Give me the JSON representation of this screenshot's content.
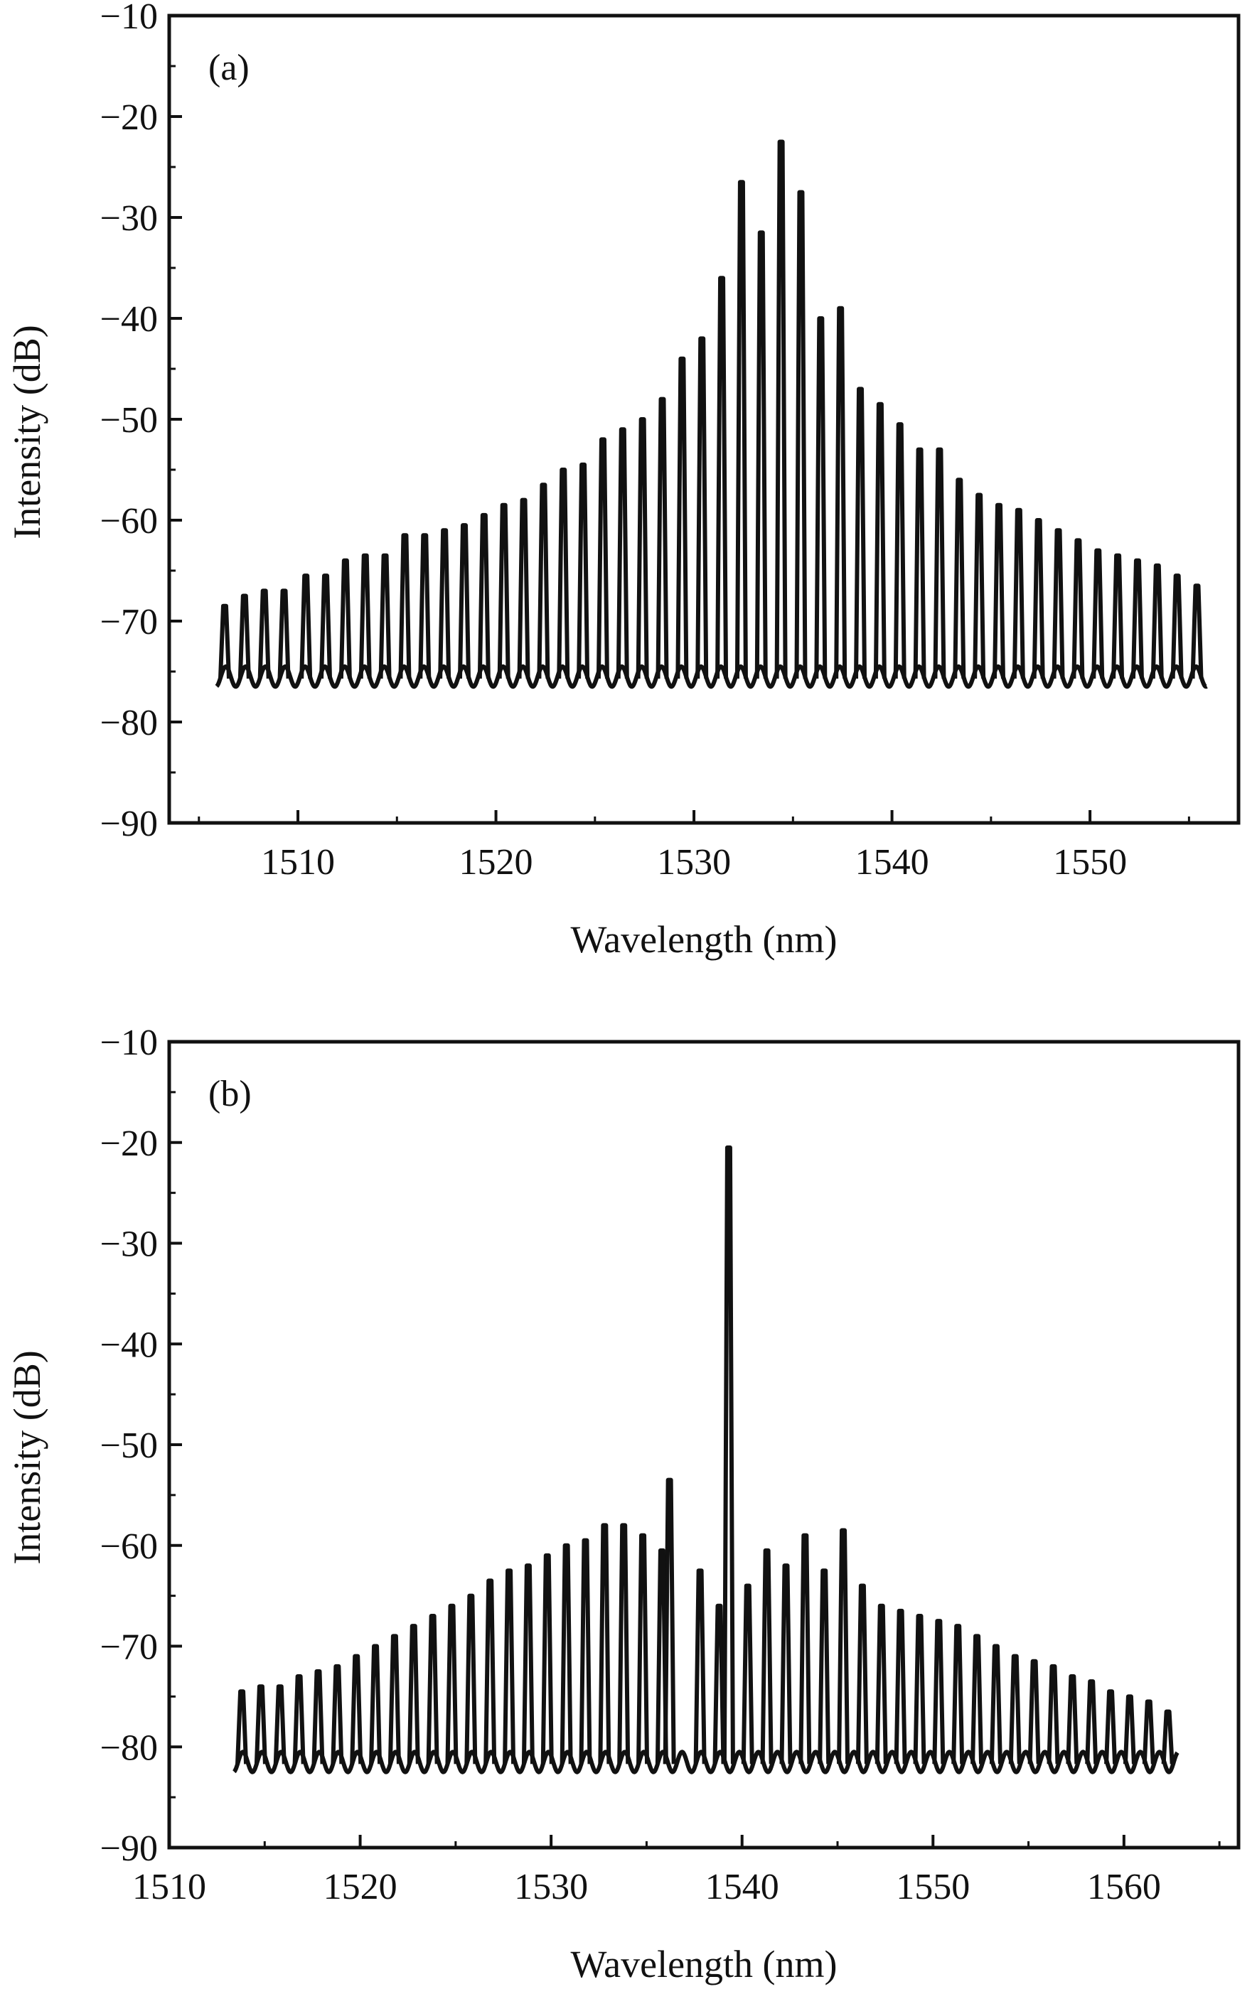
{
  "chart_data": [
    {
      "type": "line",
      "panel_label": "(a)",
      "xlabel": "Wavelength (nm)",
      "ylabel": "Intensity (dB)",
      "xlim": [
        1503.5,
        1557.5
      ],
      "ylim": [
        -90,
        -10
      ],
      "xticks": [
        1510,
        1520,
        1530,
        1540,
        1550
      ],
      "xtick_labels": [
        "1510",
        "1520",
        "1530",
        "1540",
        "1550"
      ],
      "yticks": [
        -10,
        -20,
        -30,
        -40,
        -50,
        -60,
        -70,
        -80,
        -90
      ],
      "ytick_labels": [
        "−10",
        "−20",
        "−30",
        "−40",
        "−50",
        "−60",
        "−70",
        "−80",
        "−90"
      ],
      "grid": false,
      "line_color": "#111111",
      "baseline_db": -75.5,
      "series": [
        {
          "x": [
            1506.3,
            1507.3,
            1508.3,
            1509.3,
            1510.4,
            1511.4,
            1512.4,
            1513.4,
            1514.4,
            1515.4,
            1516.4,
            1517.4,
            1518.4,
            1519.4,
            1520.4,
            1521.4,
            1522.4,
            1523.4,
            1524.4,
            1525.4,
            1526.4,
            1527.4,
            1528.4,
            1529.4,
            1530.4,
            1531.4,
            1532.4,
            1533.4,
            1534.4,
            1535.4,
            1536.4,
            1537.4,
            1538.4,
            1539.4,
            1540.4,
            1541.4,
            1542.4,
            1543.4,
            1544.4,
            1545.4,
            1546.4,
            1547.4,
            1548.4,
            1549.4,
            1550.4,
            1551.4,
            1552.4,
            1553.4,
            1554.4,
            1555.4
          ],
          "values": [
            -68.5,
            -67.5,
            -67,
            -67,
            -65.5,
            -65.5,
            -64,
            -63.5,
            -63.5,
            -61.5,
            -61.5,
            -61,
            -60.5,
            -59.5,
            -58.5,
            -58,
            -56.5,
            -55,
            -54.5,
            -52,
            -51,
            -50,
            -48,
            -44,
            -42,
            -36,
            -26.5,
            -31.5,
            -22.5,
            -27.5,
            -40,
            -39,
            -47,
            -48.5,
            -50.5,
            -53,
            -53,
            -56,
            -57.5,
            -58.5,
            -59,
            -60,
            -61,
            -62,
            -63,
            -63.5,
            -64,
            -64.5,
            -65.5,
            -66.5
          ]
        }
      ]
    },
    {
      "type": "line",
      "panel_label": "(b)",
      "xlabel": "Wavelength (nm)",
      "ylabel": "Intensity (dB)",
      "xlim": [
        1510,
        1566
      ],
      "ylim": [
        -90,
        -10
      ],
      "xticks": [
        1510,
        1520,
        1530,
        1540,
        1550,
        1560
      ],
      "xtick_labels": [
        "1510",
        "1520",
        "1530",
        "1540",
        "1550",
        "1560"
      ],
      "yticks": [
        -10,
        -20,
        -30,
        -40,
        -50,
        -60,
        -70,
        -80,
        -90
      ],
      "ytick_labels": [
        "−10",
        "−20",
        "−30",
        "−40",
        "−50",
        "−60",
        "−70",
        "−80",
        "−90"
      ],
      "grid": false,
      "line_color": "#111111",
      "baseline_db": -81.5,
      "series": [
        {
          "x": [
            1513.8,
            1514.8,
            1515.8,
            1516.8,
            1517.8,
            1518.8,
            1519.8,
            1520.8,
            1521.8,
            1522.8,
            1523.8,
            1524.8,
            1525.8,
            1526.8,
            1527.8,
            1528.8,
            1529.8,
            1530.8,
            1531.8,
            1532.8,
            1533.8,
            1534.8,
            1535.8,
            1536.2,
            1537.8,
            1538.8,
            1539.3,
            1540.3,
            1541.3,
            1542.3,
            1543.3,
            1544.3,
            1545.3,
            1546.3,
            1547.3,
            1548.3,
            1549.3,
            1550.3,
            1551.3,
            1552.3,
            1553.3,
            1554.3,
            1555.3,
            1556.3,
            1557.3,
            1558.3,
            1559.3,
            1560.3,
            1561.3,
            1562.3
          ],
          "values": [
            -74.5,
            -74,
            -74,
            -73,
            -72.5,
            -72,
            -71,
            -70,
            -69,
            -68,
            -67,
            -66,
            -65,
            -63.5,
            -62.5,
            -62,
            -61,
            -60,
            -59.5,
            -58,
            -58,
            -59,
            -60.5,
            -53.5,
            -62.5,
            -66,
            -20.5,
            -64,
            -60.5,
            -62,
            -59,
            -62.5,
            -58.5,
            -64,
            -66,
            -66.5,
            -67,
            -67.5,
            -68,
            -69,
            -70,
            -71,
            -71.5,
            -72,
            -73,
            -73.5,
            -74.5,
            -75,
            -75.5,
            -76.5
          ]
        }
      ]
    }
  ]
}
